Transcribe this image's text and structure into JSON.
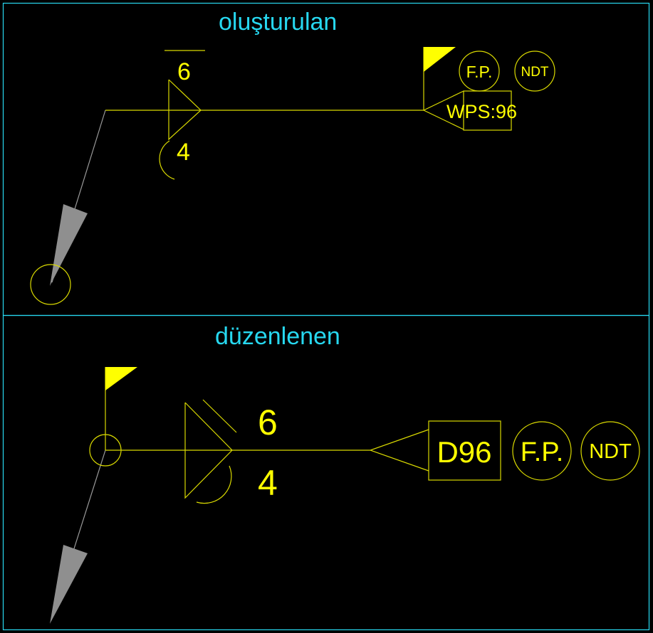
{
  "panels": {
    "top": {
      "title": "oluşturulan",
      "dimension_above": "6",
      "dimension_below": "4",
      "tail_circle_1": "F.P.",
      "tail_circle_2": "NDT",
      "tail_box": "WPS:96"
    },
    "bottom": {
      "title": "düzenlenen",
      "dimension_above": "6",
      "dimension_below": "4",
      "tail_box": "D96",
      "tail_circle_1": "F.P.",
      "tail_circle_2": "NDT"
    }
  },
  "colors": {
    "background": "#000000",
    "border": "#27d8f0",
    "symbol": "#ffff00",
    "leader": "#9a9a9a",
    "arrow": "#8f8f8f",
    "title": "#27d8f0"
  },
  "icons": {
    "flag": "field-weld-flag-icon",
    "circle": "weld-all-around-circle-icon",
    "arrow": "arrow-head-icon"
  }
}
